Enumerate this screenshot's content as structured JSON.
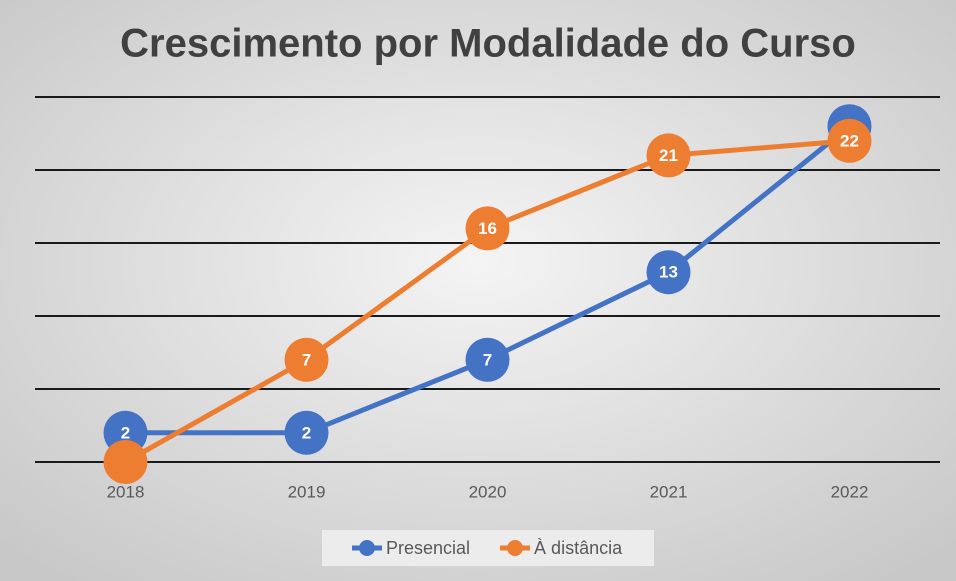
{
  "chart_data": {
    "type": "line",
    "title": "Crescimento por Modalidade do Curso",
    "categories": [
      "2018",
      "2019",
      "2020",
      "2021",
      "2022"
    ],
    "series": [
      {
        "name": "Presencial",
        "color": "#4472c4",
        "values": [
          2,
          2,
          7,
          13,
          23
        ]
      },
      {
        "name": "À distância",
        "color": "#ed7d31",
        "values": [
          0,
          7,
          16,
          21,
          22
        ],
        "value_labels": [
          null,
          "7",
          "16",
          "21",
          "22"
        ]
      }
    ],
    "ylim": [
      0,
      25
    ],
    "yticks": [
      0,
      5,
      10,
      15,
      20,
      25
    ],
    "grid": true,
    "legend": "bottom"
  }
}
